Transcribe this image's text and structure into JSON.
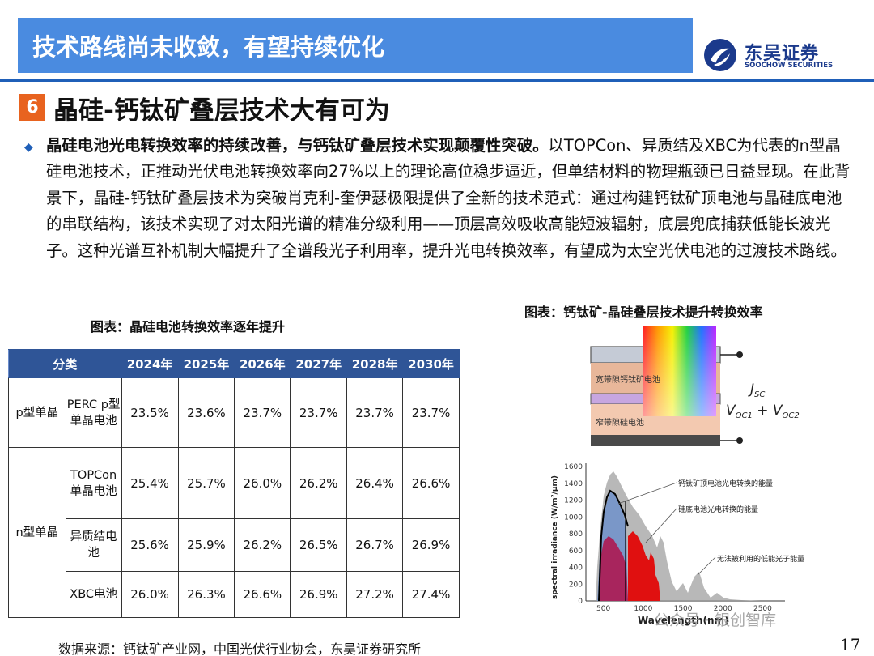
{
  "header": {
    "title": "技术路线尚未收敛，有望持续优化",
    "logo_cn": "东吴证券",
    "logo_en": "SOOCHOW SECURITIES"
  },
  "section": {
    "number": "6",
    "title": "晶硅-钙钛矿叠层技术大有可为"
  },
  "body": {
    "lead": "晶硅电池光电转换效率的持续改善，与钙钛矿叠层技术实现颠覆性突破。",
    "text": "以TOPCon、异质结及XBC为代表的n型晶硅电池技术，正推动光伏电池转换效率向27%以上的理论高位稳步逼近，但单结材料的物理瓶颈已日益显现。在此背景下，晶硅-钙钛矿叠层技术为突破肖克利-奎伊瑟极限提供了全新的技术范式：通过构建钙钛矿顶电池与晶硅底电池的串联结构，该技术实现了对太阳光谱的精准分级利用——顶层高效吸收高能短波辐射，底层兜底捕获低能长波光子。这种光谱互补机制大幅提升了全谱段光子利用率，提升光电转换效率，有望成为太空光伏电池的过渡技术路线。"
  },
  "table": {
    "caption": "图表：晶硅电池转换效率逐年提升",
    "header_category": "分类",
    "years": [
      "2024年",
      "2025年",
      "2026年",
      "2027年",
      "2028年",
      "2030年"
    ],
    "groups": [
      {
        "name": "p型单晶",
        "rows": [
          {
            "label": "PERC p型单晶电池",
            "values": [
              "23.5%",
              "23.6%",
              "23.7%",
              "23.7%",
              "23.7%",
              "23.7%"
            ]
          }
        ]
      },
      {
        "name": "n型单晶",
        "rows": [
          {
            "label": "TOPCon单晶电池",
            "values": [
              "25.4%",
              "25.7%",
              "26.0%",
              "26.2%",
              "26.4%",
              "26.6%"
            ]
          },
          {
            "label": "异质结电池",
            "values": [
              "25.6%",
              "25.9%",
              "26.2%",
              "26.5%",
              "26.7%",
              "26.9%"
            ]
          },
          {
            "label": "XBC电池",
            "values": [
              "26.0%",
              "26.3%",
              "26.6%",
              "26.9%",
              "27.2%",
              "27.4%"
            ]
          }
        ]
      }
    ]
  },
  "figure": {
    "caption": "图表：钙钛矿-晶硅叠层技术提升转换效率",
    "layer_top": "宽带隙钙钛矿电池",
    "layer_bottom": "窄带隙硅电池",
    "jsc": "J",
    "jsc_sub": "SC",
    "voc": "V",
    "voc_sub1": "OC1",
    "voc_plus": " + V",
    "voc_sub2": "OC2",
    "y_label": "spectral irradiance (W/m²/μm)",
    "x_label": "Wavelength(nm)",
    "y_ticks": [
      "1600",
      "1400",
      "1200",
      "1000",
      "800",
      "600",
      "400",
      "200",
      "0"
    ],
    "x_ticks": [
      "500",
      "1000",
      "1500",
      "2000",
      "2500"
    ],
    "annotation_top": "钙钛矿顶电池光电转换的能量",
    "annotation_mid": "硅底电池光电转换的能量",
    "annotation_low": "无法被利用的低能光子能量",
    "watermark": "公众号 · 银创智库",
    "colors": {
      "perovskite": "#e8b79a",
      "silicon": "#f3c9b0",
      "red_fill": "#e01010",
      "blue_fill": "#7a97c8"
    }
  },
  "footer": {
    "source": "数据来源：钙钛矿产业网，中国光伏行业协会，东吴证券研究所",
    "page": "17"
  }
}
